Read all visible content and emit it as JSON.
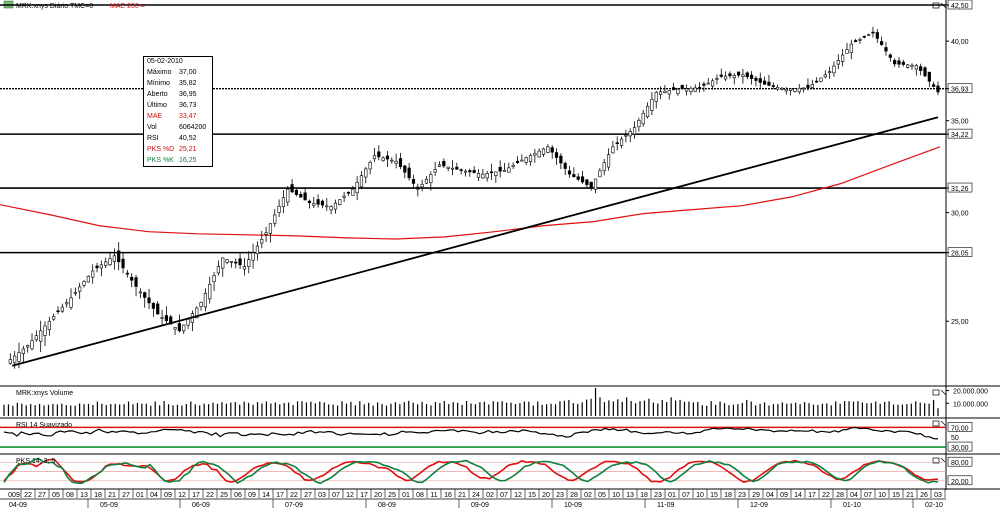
{
  "chart_data": {
    "type": "candlestick",
    "main_panel": {
      "legend_series": "MRK:xnys Diário TMC=0",
      "legend_ma": "MAE 200 =",
      "price_scale": [
        "42,50",
        "40,00",
        "36,93",
        "35,00",
        "34,22",
        "31,26",
        "30,00",
        "28,05",
        "25,00"
      ],
      "horizontal_levels": [
        42.5,
        36.93,
        34.22,
        31.26,
        28.05
      ],
      "trendline": {
        "from": {
          "date": "2009-04-10",
          "price": 23.2
        },
        "to": {
          "date": "2010-02-05",
          "price": 35.2
        }
      },
      "moving_average": {
        "name": "MAE 200",
        "color": "#e01010",
        "values": [
          30.4,
          29.9,
          29.35,
          29.05,
          28.95,
          28.9,
          28.85,
          28.75,
          28.7,
          28.8,
          29.05,
          29.35,
          29.55,
          29.95,
          30.15,
          30.35,
          30.8,
          31.5,
          32.5,
          33.5
        ]
      },
      "close_series": [
        23.3,
        24.0,
        25.0,
        26.0,
        27.2,
        27.9,
        26.5,
        25.3,
        24.6,
        25.8,
        27.8,
        27.4,
        29.0,
        31.2,
        30.5,
        30.3,
        31.2,
        33.0,
        32.7,
        31.2,
        32.5,
        32.2,
        32.0,
        32.2,
        32.9,
        33.5,
        32.0,
        31.3,
        33.5,
        34.6,
        36.7,
        36.9,
        37.0,
        37.7,
        37.8,
        37.2,
        36.9,
        37.0,
        38.0,
        39.8,
        40.6,
        38.5,
        38.4,
        36.73
      ],
      "candle_colors": {
        "up": "#ffffff",
        "down": "#000000",
        "wick": "#000000"
      }
    },
    "tooltip": {
      "date": "05-02-2010",
      "rows": [
        {
          "label": "Máximo",
          "value": "37,00",
          "color": "#000000"
        },
        {
          "label": "Mínimo",
          "value": "35,82",
          "color": "#000000"
        },
        {
          "label": "Aberto",
          "value": "36,95",
          "color": "#000000"
        },
        {
          "label": "Último",
          "value": "36,73",
          "color": "#000000"
        },
        {
          "label": "MAE",
          "value": "33,47",
          "color": "#d01010"
        },
        {
          "label": "Vol",
          "value": "6064200",
          "color": "#000000"
        },
        {
          "label": "RSI",
          "value": "40,52",
          "color": "#000000"
        },
        {
          "label": "PKS %D",
          "value": "25,21",
          "color": "#d01010"
        },
        {
          "label": "PKS %K",
          "value": "16,25",
          "color": "#108040"
        }
      ]
    },
    "volume_panel": {
      "label": "MRK:xnys Volume",
      "scale": [
        "20.000.000",
        "10.000.000"
      ],
      "values_millions": [
        8.9,
        9.1,
        8.1,
        10.4,
        9.7,
        8.4,
        9.4,
        8.5,
        9.4,
        8.3,
        8.8,
        9.4,
        9.1,
        9.7,
        8.5,
        8.3,
        8.1,
        9.8,
        9.3,
        9.5,
        8.7,
        11.3,
        9.6,
        8.5,
        9.4,
        9.5,
        9.0,
        9.3,
        11.4,
        9.2,
        10.2,
        9.7,
        9.6,
        8.1,
        11.4,
        8.4,
        11.8,
        9.3,
        8.4,
        8.8,
        8.2,
        9.4,
        11.4,
        9.2,
        8.3,
        9.7,
        9.3,
        10.4,
        9.6,
        10.9,
        9.7,
        10.6,
        11.0,
        8.9,
        11.3,
        10.3,
        8.9,
        10.9,
        9.8,
        11.4,
        9.8,
        10.7,
        9.1,
        10.2,
        10.5,
        8.6,
        11.5,
        11.6,
        10.6,
        11.3,
        9.9,
        11.3,
        10.7,
        9.1,
        9.0,
        8.2,
        11.6,
        9.7,
        11.1,
        8.4,
        11.6,
        9.1,
        10.4,
        8.2,
        10.7,
        9.4,
        8.2,
        9.6,
        10.8,
        9.3,
        10.9,
        11.9,
        10.5,
        9.2,
        11.2,
        9.4,
        8.3,
        11.0,
        10.1,
        11.8,
        9.4,
        10.9,
        10.4,
        8.7,
        11.8,
        9.8,
        9.2,
        10.8,
        11.2,
        9.1,
        11.6,
        11.1,
        11.6,
        10.4,
        10.5,
        9.4,
        10.1,
        11.4,
        11.2,
        8.3,
        11.4,
        8.7,
        9.2,
        9.6,
        9.3,
        11.6,
        12.0,
        12.6,
        10.1,
        9.5,
        10.7,
        12.9,
        13.5,
        22.0,
        14.6,
        10.9,
        12.3,
        11.4,
        13.1,
        11.1,
        14.6,
        11.8,
        10.0,
        11.7,
        12.1,
        13.6,
        10.5,
        9.8,
        12.6,
        11.0,
        14.7,
        12.2,
        12.7,
        11.2,
        11.4,
        10.7,
        11.0,
        8.5,
        8.1,
        11.7,
        8.8,
        11.4,
        10.1,
        8.5,
        8.9,
        9.3,
        10.2,
        12.6,
        11.4,
        8.4,
        9.6,
        10.7,
        8.3,
        9.3,
        9.4,
        10.7,
        9.6,
        9.9,
        10.5,
        9.3,
        10.9,
        10.1,
        8.9,
        8.7,
        9.6,
        9.9,
        8.3,
        11.5,
        9.6,
        11.8,
        11.6,
        11.3,
        11.7,
        10.6,
        10.0,
        10.2,
        11.4,
        9.6,
        11.1,
        11.6,
        9.0,
        8.9,
        9.0,
        9.3,
        9.7,
        11.6,
        10.5,
        10.0,
        9.7,
        12.6,
        6.1
      ]
    },
    "rsi_panel": {
      "label": "RSI 14 Suavizado",
      "scale": [
        "70,00",
        "50",
        "30,00"
      ],
      "levels": [
        70,
        30
      ],
      "values": [
        60.7,
        59.1,
        58.5,
        52.5,
        60.9,
        57.3,
        55.1,
        57.7,
        58.3,
        54.2,
        53.0,
        53.0,
        59.6,
        62.7,
        60.4,
        62.9,
        62.7,
        59.4,
        57.3,
        60.0,
        56.9,
        62.5,
        66.3,
        61.6,
        59.2,
        61.9,
        60.2,
        62.4,
        62.6,
        60.6,
        60.9,
        57.2,
        58.1,
        58.2,
        61.0,
        61.3,
        63.7,
        66.1,
        65.4,
        65.5,
        64.9,
        65.5,
        62.8,
        63.3,
        58.5,
        61.5,
        61.2,
        58.8,
        54.1,
        58.7,
        51.3,
        56.8,
        59.1,
        58.7,
        58.9,
        53.6,
        53.6,
        56.7,
        55.8,
        56.8,
        55.5,
        53.6,
        58.7,
        57.1,
        55.6,
        54.5,
        56.2,
        54.3,
        60.2,
        57.6,
        61.8,
        63.5,
        58.8,
        61.1,
        60.0,
        61.6,
        60.6,
        55.9,
        54.3,
        56.3,
        58.3,
        56.6,
        56.7,
        56.3,
        56.0,
        55.8,
        56.3,
        55.0,
        59.1,
        53.7,
        55.3,
        57.2,
        62.4,
        60.5,
        61.1,
        59.8,
        58.8,
        59.5,
        58.7,
        62.3,
        63.8,
        63.3,
        63.2,
        64.7,
        65.1,
        61.2,
        63.9,
        63.0,
        61.2,
        60.1,
        57.1,
        59.5,
        63.6,
        59.5,
        61.9,
        58.9,
        59.9,
        63.6,
        62.7,
        61.1,
        64.9,
        63.5,
        61.2,
        60.9,
        57.0,
        57.4,
        55.9,
        56.2,
        52.6,
        53.4,
        50.3,
        51.1,
        57.9,
        59.7,
        60.6,
        59.9,
        64.6,
        65.2,
        63.8,
        67.9,
        65.3,
        67.1,
        63.7,
        64.4,
        66.1,
        60.5,
        61.6,
        59.3,
        57.2,
        57.7,
        57.6,
        58.8,
        58.9,
        61.2,
        61.1,
        58.2,
        58.1,
        60.3,
        56.8,
        57.3,
        59.6,
        59.9,
        64.2,
        65.6,
        68.3,
        67.0,
        67.2,
        68.8,
        68.0,
        66.5,
        66.9,
        65.9,
        68.7,
        66.2,
        63.6,
        65.8,
        64.6,
        64.3,
        61.0,
        62.7,
        62.8,
        61.8,
        64.4,
        62.7,
        63.1,
        62.2,
        62.2,
        64.8,
        59.6,
        62.1,
        61.0,
        59.9,
        63.3,
        60.6,
        65.1,
        65.7,
        69.1,
        69.7,
        67.3,
        68.6,
        67.2,
        64.5,
        63.2,
        61.6,
        63.8,
        62.6,
        59.6,
        62.5,
        62.3,
        62.0,
        59.6,
        56.6,
        57.4,
        51.1,
        50.9,
        47.3,
        46.7
      ],
      "line_colors": {
        "rsi": "#000000",
        "upper": "#e01010",
        "lower": "#109030"
      }
    },
    "stochastic_panel": {
      "label": "PKS 14; 3; 5",
      "scale": [
        "80,00",
        "20,00"
      ],
      "levels": [
        80,
        20
      ],
      "series": [
        {
          "name": "%D",
          "color": "#e01010",
          "values": [
            19.6,
            35.9,
            46.5,
            68.6,
            75.2,
            75.5,
            74.0,
            66.4,
            75.9,
            85.5,
            88.8,
            87.0,
            70.8,
            53.9,
            38.2,
            21.1,
            17.4,
            17.2,
            20.4,
            27.8,
            39.6,
            50.1,
            67.7,
            73.5,
            73.6,
            75.0,
            69.5,
            68.4,
            67.8,
            65.9,
            68.8,
            67.4,
            56.2,
            44.6,
            30.1,
            18.8,
            22.1,
            24.8,
            36.8,
            53.0,
            61.1,
            70.0,
            69.9,
            75.1,
            72.3,
            57.2,
            55.4,
            36.1,
            20.3,
            15.9,
            18.6,
            27.9,
            36.5,
            48.8,
            60.4,
            66.7,
            70.7,
            77.1,
            78.4,
            76.5,
            73.6,
            69.3,
            60.0,
            46.5,
            39.7,
            23.6,
            21.6,
            23.8,
            31.5,
            37.1,
            47.4,
            59.7,
            65.4,
            73.4,
            79.6,
            81.0,
            81.7,
            77.8,
            76.0,
            75.7,
            70.2,
            62.4,
            62.3,
            59.4,
            48.6,
            35.9,
            28.4,
            20.9,
            22.5,
            34.3,
            44.5,
            57.1,
            67.4,
            73.9,
            82.3,
            78.8,
            80.0,
            80.5,
            76.1,
            69.4,
            65.2,
            48.5,
            38.3,
            29.8,
            30.1,
            26.6,
            37.2,
            45.4,
            56.9,
            69.5,
            73.5,
            75.9,
            84.7,
            79.7,
            81.4,
            79.6,
            74.3,
            73.2,
            61.1,
            47.9,
            38.8,
            31.4,
            22.6,
            21.4,
            27.3,
            38.0,
            48.7,
            57.8,
            63.8,
            74.4,
            81.9,
            82.3,
            81.8,
            79.5,
            75.5,
            75.8,
            66.6,
            58.4,
            42.5,
            32.8,
            17.9,
            18.5,
            16.6,
            25.1,
            29.9,
            45.0,
            57.7,
            64.6,
            76.2,
            80.8,
            81.9,
            82.0,
            80.5,
            81.3,
            74.3,
            66.6,
            56.0,
            45.9,
            35.2,
            24.1,
            15.9,
            19.2,
            20.9,
            32.0,
            42.1,
            52.7,
            63.0,
            72.1,
            78.6,
            82.2,
            80.5,
            85.6,
            80.9,
            79.1,
            73.4,
            71.3,
            62.2,
            49.5,
            41.3,
            35.0,
            25.2,
            25.6,
            30.3,
            41.6,
            51.4,
            59.0,
            71.9,
            75.2,
            80.8,
            83.7,
            81.9,
            79.6,
            78.0,
            72.6,
            66.5,
            61.0,
            50.8,
            38.6,
            32.1,
            23.9,
            22.5,
            24.5,
            25.2
          ]
        },
        {
          "name": "%K",
          "color": "#108040",
          "values": [
            14.9,
            39.5,
            56.6,
            74.5,
            72.5,
            75.3,
            86.2,
            92.4,
            82.6,
            79.0,
            79.3,
            66.8,
            61.1,
            32.7,
            16.2,
            12.6,
            12.0,
            21.2,
            32.6,
            39.8,
            50.2,
            66.3,
            71.4,
            72.5,
            74.1,
            77.9,
            72.3,
            67.9,
            63.4,
            61.5,
            72.5,
            55.6,
            34.8,
            20.1,
            15.4,
            19.5,
            19.2,
            37.2,
            45.8,
            67.0,
            78.6,
            81.9,
            75.8,
            73.4,
            67.5,
            54.7,
            43.0,
            27.9,
            12.8,
            21.5,
            32.1,
            37.8,
            51.2,
            63.3,
            69.4,
            76.7,
            80.2,
            74.1,
            76.0,
            70.9,
            64.0,
            48.3,
            40.1,
            30.0,
            18.0,
            11.6,
            20.7,
            27.6,
            39.1,
            53.2,
            62.9,
            71.0,
            78.6,
            81.6,
            79.7,
            81.3,
            80.8,
            78.5,
            70.2,
            66.9,
            59.8,
            55.1,
            47.6,
            35.8,
            21.9,
            15.6,
            15.2,
            26.3,
            40.3,
            53.7,
            65.5,
            74.2,
            81.1,
            80.4,
            82.6,
            85.6,
            77.5,
            70.3,
            64.1,
            51.2,
            37.1,
            26.7,
            20.4,
            20.7,
            29.1,
            38.7,
            51.2,
            66.1,
            69.8,
            77.8,
            81.0,
            82.2,
            81.5,
            77.4,
            73.7,
            69.4,
            56.8,
            44.5,
            30.1,
            22.0,
            17.8,
            28.2,
            37.5,
            47.9,
            59.6,
            69.3,
            73.1,
            76.9,
            80.5,
            76.6,
            81.3,
            75.4,
            73.0,
            62.0,
            48.5,
            31.7,
            22.2,
            16.9,
            22.9,
            35.5,
            47.1,
            60.6,
            72.1,
            73.8,
            78.6,
            84.1,
            78.9,
            79.6,
            73.3,
            71.8,
            62.3,
            50.7,
            36.7,
            25.9,
            17.9,
            22.6,
            32.6,
            44.8,
            58.7,
            73.3,
            77.3,
            80.0,
            78.7,
            81.3,
            78.3,
            82.5,
            78.3,
            72.5,
            63.4,
            51.9,
            39.7,
            29.8,
            24.5,
            20.3,
            24.9,
            38.8,
            53.5,
            66.6,
            74.1,
            78.4,
            84.0,
            78.4,
            78.6,
            75.4,
            71.1,
            64.2,
            46.8,
            36.2,
            27.0,
            20.2,
            13.4,
            18.2,
            16.2
          ]
        }
      ]
    },
    "x_axis": {
      "day_ticks": [
        "009",
        "22",
        "27",
        "05",
        "08",
        "13",
        "18",
        "21",
        "27",
        "01",
        "04",
        "09",
        "12",
        "17",
        "22",
        "25",
        "06",
        "09",
        "14",
        "17",
        "22",
        "27",
        "03",
        "07",
        "12",
        "17",
        "20",
        "25",
        "01",
        "08",
        "11",
        "16",
        "21",
        "24",
        "02",
        "07",
        "12",
        "15",
        "20",
        "23",
        "28",
        "02",
        "05",
        "10",
        "13",
        "18",
        "23",
        "01",
        "07",
        "10",
        "15",
        "18",
        "23",
        "29",
        "04",
        "09",
        "14",
        "17",
        "22",
        "28",
        "04",
        "07",
        "10",
        "15",
        "21",
        "26",
        "03"
      ],
      "month_ticks": [
        "04-09",
        "05-09",
        "06-09",
        "07-09",
        "08-09",
        "09-09",
        "10-09",
        "11-09",
        "12-09",
        "01-10",
        "02-10"
      ]
    }
  }
}
